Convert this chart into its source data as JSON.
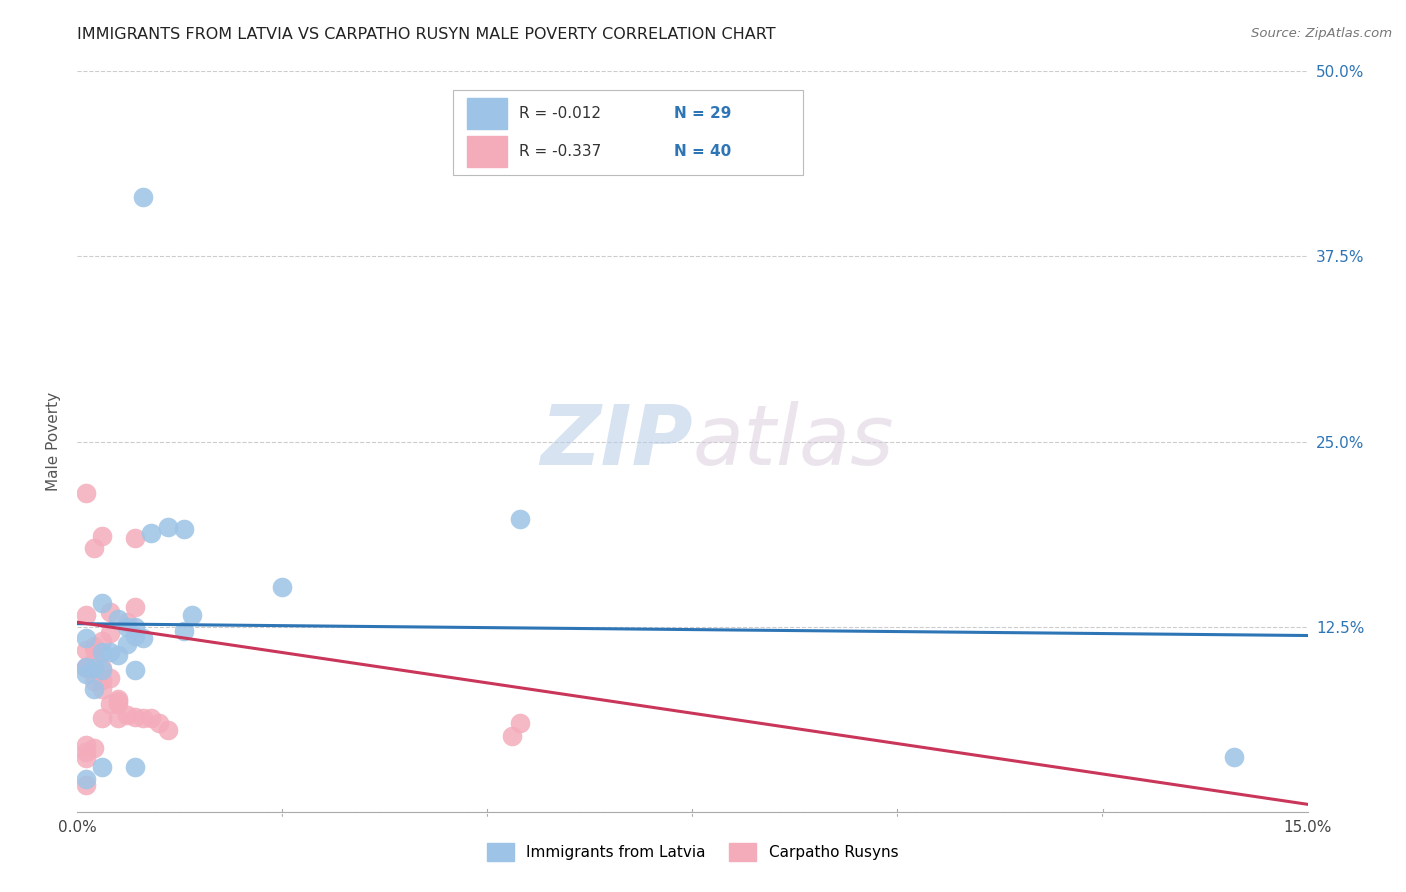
{
  "title": "IMMIGRANTS FROM LATVIA VS CARPATHO RUSYN MALE POVERTY CORRELATION CHART",
  "source": "Source: ZipAtlas.com",
  "ylabel": "Male Poverty",
  "xlim": [
    0.0,
    0.15
  ],
  "ylim": [
    0.0,
    0.5
  ],
  "xticks": [
    0.0,
    0.025,
    0.05,
    0.075,
    0.1,
    0.125,
    0.15
  ],
  "yticks": [
    0.0,
    0.125,
    0.25,
    0.375,
    0.5
  ],
  "blue_color": "#9DC3E6",
  "pink_color": "#F4ACBB",
  "blue_line_color": "#2E75B6",
  "pink_line_color": "#C9365A",
  "legend_R1": "-0.012",
  "legend_N1": "29",
  "legend_R2": "-0.337",
  "legend_N2": "40",
  "legend_label1": "Immigrants from Latvia",
  "legend_label2": "Carpatho Rusyns",
  "watermark_zip": "ZIP",
  "watermark_atlas": "atlas",
  "blue_line_x": [
    0.0,
    0.15
  ],
  "blue_line_y": [
    0.127,
    0.119
  ],
  "pink_line_x": [
    0.0,
    0.15
  ],
  "pink_line_y": [
    0.128,
    0.005
  ],
  "blue_x": [
    0.006,
    0.013,
    0.007,
    0.003,
    0.005,
    0.002,
    0.006,
    0.008,
    0.004,
    0.003,
    0.005,
    0.007,
    0.009,
    0.011,
    0.013,
    0.014,
    0.007,
    0.007,
    0.054,
    0.001,
    0.002,
    0.001,
    0.001,
    0.001,
    0.003,
    0.003,
    0.141,
    0.025,
    0.008
  ],
  "blue_y": [
    0.125,
    0.122,
    0.119,
    0.141,
    0.106,
    0.097,
    0.113,
    0.117,
    0.108,
    0.108,
    0.13,
    0.125,
    0.188,
    0.192,
    0.191,
    0.133,
    0.096,
    0.03,
    0.198,
    0.022,
    0.083,
    0.093,
    0.098,
    0.117,
    0.096,
    0.03,
    0.037,
    0.152,
    0.415
  ],
  "pink_x": [
    0.001,
    0.002,
    0.003,
    0.001,
    0.004,
    0.002,
    0.003,
    0.001,
    0.004,
    0.002,
    0.003,
    0.005,
    0.006,
    0.004,
    0.005,
    0.003,
    0.007,
    0.007,
    0.004,
    0.003,
    0.002,
    0.001,
    0.001,
    0.002,
    0.003,
    0.005,
    0.005,
    0.006,
    0.007,
    0.008,
    0.009,
    0.01,
    0.011,
    0.053,
    0.054,
    0.002,
    0.001,
    0.001,
    0.001,
    0.001
  ],
  "pink_y": [
    0.215,
    0.178,
    0.186,
    0.133,
    0.121,
    0.112,
    0.097,
    0.097,
    0.09,
    0.088,
    0.083,
    0.073,
    0.128,
    0.073,
    0.063,
    0.063,
    0.138,
    0.185,
    0.135,
    0.115,
    0.11,
    0.098,
    0.109,
    0.102,
    0.089,
    0.076,
    0.075,
    0.065,
    0.064,
    0.063,
    0.063,
    0.06,
    0.055,
    0.051,
    0.06,
    0.043,
    0.045,
    0.04,
    0.036,
    0.018
  ]
}
